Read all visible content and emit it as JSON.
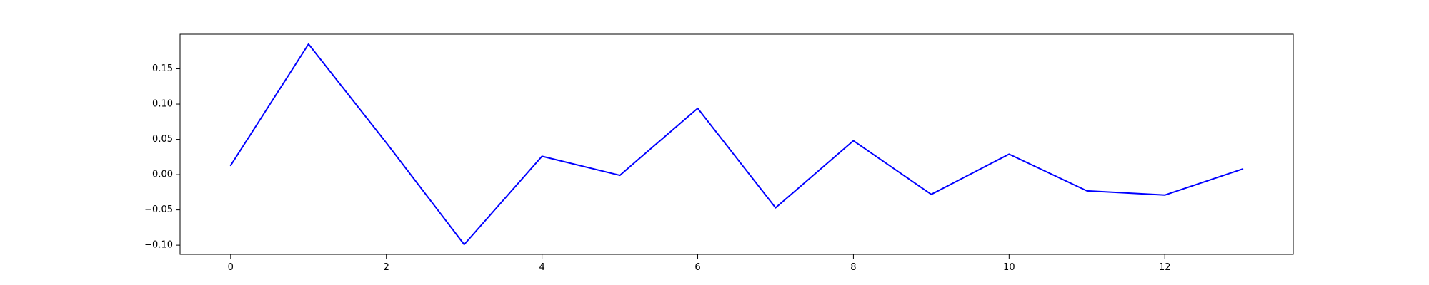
{
  "chart_data": {
    "type": "line",
    "title": "",
    "xlabel": "",
    "ylabel": "",
    "xlim": [
      -0.65,
      13.65
    ],
    "ylim": [
      -0.113,
      0.199
    ],
    "grid": false,
    "x_ticks": [
      0,
      2,
      4,
      6,
      8,
      10,
      12
    ],
    "x_tick_labels": [
      "0",
      "2",
      "4",
      "6",
      "8",
      "10",
      "12"
    ],
    "y_ticks": [
      -0.1,
      -0.05,
      0.0,
      0.05,
      0.1,
      0.15
    ],
    "y_tick_labels": [
      "−0.10",
      "−0.05",
      "0.00",
      "0.05",
      "0.10",
      "0.15"
    ],
    "series": [
      {
        "color": "#0000ff",
        "x": [
          0,
          1,
          2,
          3,
          4,
          5,
          6,
          7,
          8,
          9,
          10,
          11,
          12,
          13
        ],
        "values": [
          0.013,
          0.185,
          0.045,
          -0.099,
          0.026,
          -0.001,
          0.094,
          -0.047,
          0.048,
          -0.028,
          0.029,
          -0.023,
          -0.029,
          0.008
        ]
      }
    ]
  }
}
